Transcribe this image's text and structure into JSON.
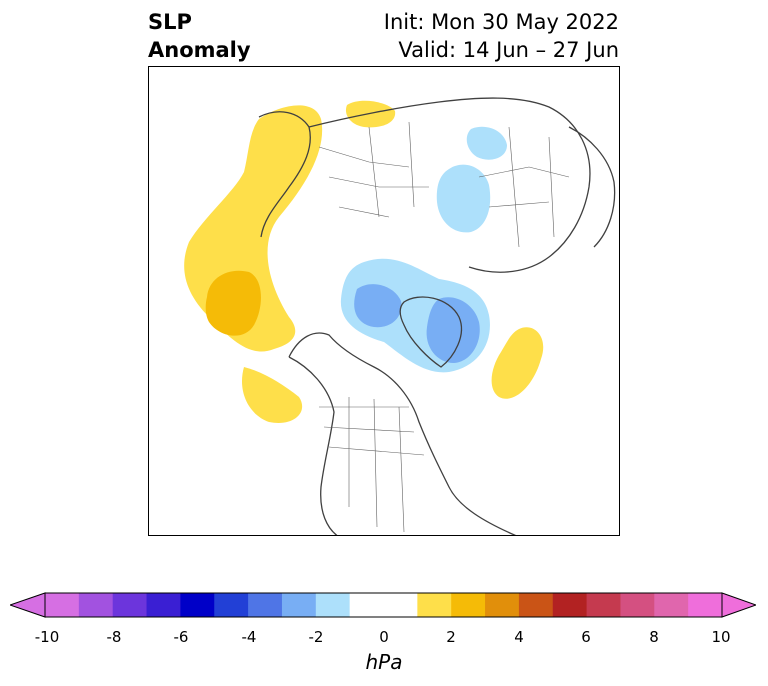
{
  "header": {
    "title_line1": "SLP",
    "title_line2": "Anomaly",
    "init_text": "Init: Mon 30 May 2022",
    "valid_text": "Valid: 14 Jun – 27 Jun"
  },
  "colorbar": {
    "unit": "hPa",
    "ticks": [
      "-10",
      "-8",
      "-6",
      "-4",
      "-2",
      "0",
      "2",
      "4",
      "6",
      "8",
      "10"
    ],
    "colors": [
      "#d66fe3",
      "#a252e0",
      "#6c35dc",
      "#3a1fd3",
      "#0000c8",
      "#2240d6",
      "#4f75e6",
      "#78aef4",
      "#ade0fb",
      "#ffffff",
      "#ffffff",
      "#fedf4a",
      "#f5bb07",
      "#e18f0b",
      "#ca5416",
      "#b22222",
      "#c53a4f",
      "#d45081",
      "#e066ad",
      "#ef6edb"
    ]
  }
}
